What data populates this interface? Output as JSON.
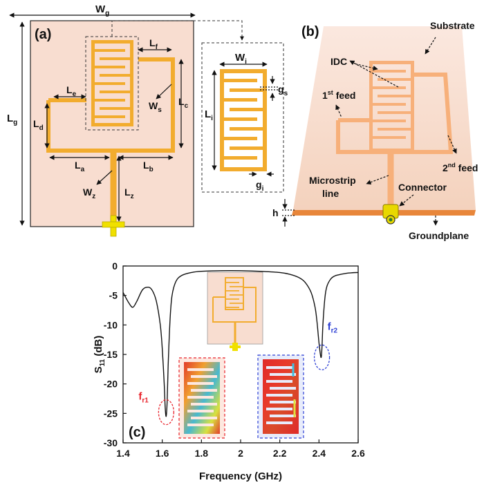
{
  "panels": {
    "a": "(a)",
    "b": "(b)",
    "c": "(c)"
  },
  "panel_a": {
    "labels": {
      "Wg": {
        "main": "W",
        "sub": "g"
      },
      "Lg": {
        "main": "L",
        "sub": "g"
      },
      "Lf": {
        "main": "L",
        "sub": "f"
      },
      "Le": {
        "main": "L",
        "sub": "e"
      },
      "Lc": {
        "main": "L",
        "sub": "c"
      },
      "Ws": {
        "main": "W",
        "sub": "s"
      },
      "Ld": {
        "main": "L",
        "sub": "d"
      },
      "La": {
        "main": "L",
        "sub": "a"
      },
      "Lb": {
        "main": "L",
        "sub": "b"
      },
      "Wz": {
        "main": "W",
        "sub": "z"
      },
      "Lz": {
        "main": "L",
        "sub": "z"
      }
    }
  },
  "inset": {
    "labels": {
      "Wi": {
        "main": "W",
        "sub": "i"
      },
      "Li": {
        "main": "L",
        "sub": "i"
      },
      "gs": {
        "main": "g",
        "sub": "s"
      },
      "gi": {
        "main": "g",
        "sub": "i"
      }
    }
  },
  "panel_b": {
    "substrate": "Substrate",
    "idc": "IDC",
    "feed1_num": "1",
    "feed1_sup": "st",
    "feed1_word": " feed",
    "feed2_num": "2",
    "feed2_sup": "nd",
    "feed2_word": " feed",
    "microstrip1": "Microstrip",
    "microstrip2": "line",
    "connector": "Connector",
    "h": "h",
    "groundplane": "Groundplane"
  },
  "colors": {
    "substrate": "#f8ddd0",
    "copper": "#f2ac2e",
    "connector": "#f0e000",
    "fr1": "#e8212a",
    "fr2": "#2d3fd4"
  },
  "chart_data": {
    "type": "line",
    "xlabel": "Frequency (GHz)",
    "ylabel_main": "S",
    "ylabel_sub": "11",
    "ylabel_unit": " (dB)",
    "xlim": [
      1.4,
      2.6
    ],
    "ylim": [
      -30,
      0
    ],
    "xticks": [
      "1.4",
      "1.6",
      "1.8",
      "2",
      "2.2",
      "2.4",
      "2.6"
    ],
    "yticks": [
      "0",
      "-5",
      "-10",
      "-15",
      "-20",
      "-25",
      "-30"
    ],
    "series": [
      {
        "x": [
          1.4,
          1.43,
          1.45,
          1.47,
          1.5,
          1.53,
          1.55,
          1.57,
          1.59,
          1.6,
          1.61,
          1.615,
          1.62,
          1.625,
          1.63,
          1.64,
          1.65,
          1.67,
          1.7,
          1.75,
          1.8,
          1.9,
          2.0,
          2.1,
          2.2,
          2.25,
          2.3,
          2.33,
          2.36,
          2.38,
          2.39,
          2.4,
          2.41,
          2.415,
          2.42,
          2.43,
          2.44,
          2.46,
          2.48,
          2.5,
          2.55,
          2.6
        ],
        "y": [
          -4.5,
          -6.3,
          -7.0,
          -6.0,
          -4.0,
          -3.6,
          -4.2,
          -6.0,
          -10.0,
          -14.0,
          -20.0,
          -24.0,
          -25.5,
          -23.0,
          -17.0,
          -9.0,
          -5.0,
          -2.6,
          -1.6,
          -1.1,
          -0.9,
          -0.8,
          -0.8,
          -0.9,
          -1.1,
          -1.4,
          -2.0,
          -2.8,
          -4.5,
          -7.0,
          -9.5,
          -13.0,
          -15.5,
          -14.0,
          -10.0,
          -5.5,
          -3.5,
          -2.2,
          -1.7,
          -1.5,
          -1.2,
          -1.1
        ]
      }
    ],
    "annotations": [
      {
        "main": "f",
        "sub": "r1",
        "x": 1.62,
        "y": -25.5
      },
      {
        "main": "f",
        "sub": "r2",
        "x": 2.415,
        "y": -15.5
      }
    ]
  }
}
